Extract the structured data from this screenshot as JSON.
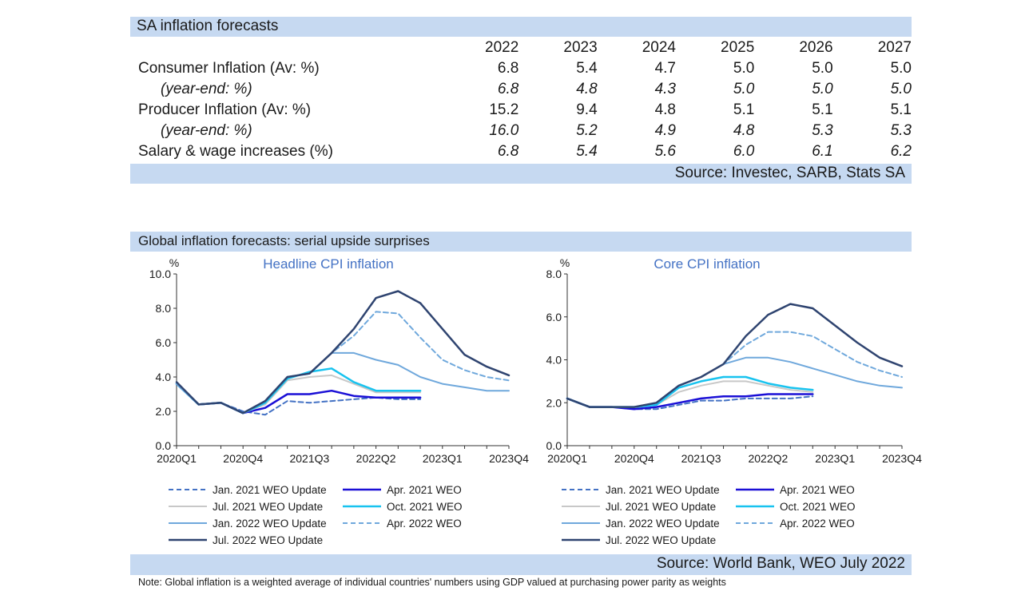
{
  "sa_table": {
    "title": "SA inflation forecasts",
    "years": [
      "2022",
      "2023",
      "2024",
      "2025",
      "2026",
      "2027"
    ],
    "rows": [
      {
        "label": "Consumer Inflation (Av: %)",
        "values": [
          "6.8",
          "5.4",
          "4.7",
          "5.0",
          "5.0",
          "5.0"
        ]
      },
      {
        "label": "(year-end: %)",
        "values": [
          "6.8",
          "4.8",
          "4.3",
          "5.0",
          "5.0",
          "5.0"
        ]
      },
      {
        "label": "Producer Inflation (Av: %)",
        "values": [
          "15.2",
          "9.4",
          "4.8",
          "5.1",
          "5.1",
          "5.1"
        ]
      },
      {
        "label": "(year-end: %)",
        "values": [
          "16.0",
          "5.2",
          "4.9",
          "4.8",
          "5.3",
          "5.3"
        ]
      },
      {
        "label": "Salary & wage increases (%)",
        "values": [
          "6.8",
          "5.4",
          "5.6",
          "6.0",
          "6.1",
          "6.2"
        ]
      }
    ],
    "source": "Source: Investec, SARB, Stats SA"
  },
  "global_section": {
    "title": "Global inflation forecasts: serial upside surprises",
    "source": "Source: World Bank, WEO July 2022",
    "note": "Note: Global inflation is a weighted average of individual countries' numbers using GDP valued at purchasing power parity as weights"
  },
  "chart_data": [
    {
      "type": "line",
      "title": "Headline CPI inflation",
      "ylabel": "%",
      "ylim": [
        0,
        10
      ],
      "yticks": [
        "0.0",
        "2.0",
        "4.0",
        "6.0",
        "8.0",
        "10.0"
      ],
      "xtick_labels": [
        "2020Q1",
        "2020Q4",
        "2021Q3",
        "2022Q2",
        "2023Q1",
        "2023Q4"
      ],
      "x": [
        "2020Q1",
        "2020Q2",
        "2020Q3",
        "2020Q4",
        "2021Q1",
        "2021Q2",
        "2021Q3",
        "2021Q4",
        "2022Q1",
        "2022Q2",
        "2022Q3",
        "2022Q4",
        "2023Q1",
        "2023Q2",
        "2023Q3",
        "2023Q4"
      ],
      "series": [
        {
          "name": "Jan. 2021 WEO Update",
          "values": [
            3.6,
            2.4,
            2.5,
            2.0,
            1.8,
            2.6,
            2.5,
            2.6,
            2.7,
            2.8,
            2.7,
            2.7,
            null,
            null,
            null,
            null
          ]
        },
        {
          "name": "Apr. 2021 WEO",
          "values": [
            3.6,
            2.4,
            2.5,
            1.9,
            2.2,
            3.0,
            3.0,
            3.2,
            2.9,
            2.8,
            2.8,
            2.8,
            null,
            null,
            null,
            null
          ]
        },
        {
          "name": "Jul. 2021 WEO Update",
          "values": [
            3.6,
            2.4,
            2.5,
            1.9,
            2.4,
            3.8,
            4.0,
            4.1,
            3.6,
            3.1,
            3.1,
            3.1,
            null,
            null,
            null,
            null
          ]
        },
        {
          "name": "Oct. 2021 WEO",
          "values": [
            3.6,
            2.4,
            2.5,
            1.9,
            2.5,
            3.9,
            4.3,
            4.5,
            3.7,
            3.2,
            3.2,
            3.2,
            null,
            null,
            null,
            null
          ]
        },
        {
          "name": "Jan. 2022 WEO Update",
          "values": [
            3.6,
            2.4,
            2.5,
            1.9,
            2.6,
            4.0,
            4.2,
            5.4,
            5.4,
            5.0,
            4.7,
            4.0,
            3.6,
            3.4,
            3.2,
            3.2
          ]
        },
        {
          "name": "Apr. 2022 WEO",
          "values": [
            3.6,
            2.4,
            2.5,
            1.9,
            2.6,
            4.0,
            4.2,
            5.4,
            6.4,
            7.8,
            7.7,
            6.3,
            5.0,
            4.4,
            4.0,
            3.8
          ]
        },
        {
          "name": "Jul. 2022 WEO Update",
          "values": [
            3.7,
            2.4,
            2.5,
            1.9,
            2.6,
            4.0,
            4.2,
            5.4,
            6.8,
            8.6,
            9.0,
            8.3,
            6.8,
            5.3,
            4.6,
            4.1
          ]
        }
      ]
    },
    {
      "type": "line",
      "title": "Core CPI inflation",
      "ylabel": "%",
      "ylim": [
        0,
        8
      ],
      "yticks": [
        "0.0",
        "2.0",
        "4.0",
        "6.0",
        "8.0"
      ],
      "xtick_labels": [
        "2020Q1",
        "2020Q4",
        "2021Q3",
        "2022Q2",
        "2023Q1",
        "2023Q4"
      ],
      "x": [
        "2020Q1",
        "2020Q2",
        "2020Q3",
        "2020Q4",
        "2021Q1",
        "2021Q2",
        "2021Q3",
        "2021Q4",
        "2022Q1",
        "2022Q2",
        "2022Q3",
        "2022Q4",
        "2023Q1",
        "2023Q2",
        "2023Q3",
        "2023Q4"
      ],
      "series": [
        {
          "name": "Jan. 2021 WEO Update",
          "values": [
            2.2,
            1.8,
            1.8,
            1.7,
            1.7,
            1.9,
            2.1,
            2.1,
            2.2,
            2.2,
            2.2,
            2.3,
            null,
            null,
            null,
            null
          ]
        },
        {
          "name": "Apr. 2021 WEO",
          "values": [
            2.2,
            1.8,
            1.8,
            1.7,
            1.8,
            2.0,
            2.2,
            2.3,
            2.3,
            2.4,
            2.4,
            2.4,
            null,
            null,
            null,
            null
          ]
        },
        {
          "name": "Jul. 2021 WEO Update",
          "values": [
            2.2,
            1.8,
            1.8,
            1.8,
            1.9,
            2.5,
            2.8,
            3.0,
            3.0,
            2.8,
            2.6,
            2.5,
            null,
            null,
            null,
            null
          ]
        },
        {
          "name": "Oct. 2021 WEO",
          "values": [
            2.2,
            1.8,
            1.8,
            1.8,
            1.9,
            2.7,
            3.0,
            3.2,
            3.2,
            2.9,
            2.7,
            2.6,
            null,
            null,
            null,
            null
          ]
        },
        {
          "name": "Jan. 2022 WEO Update",
          "values": [
            2.2,
            1.8,
            1.8,
            1.8,
            2.0,
            2.8,
            3.2,
            3.8,
            4.1,
            4.1,
            3.9,
            3.6,
            3.3,
            3.0,
            2.8,
            2.7
          ]
        },
        {
          "name": "Apr. 2022 WEO",
          "values": [
            2.2,
            1.8,
            1.8,
            1.8,
            2.0,
            2.8,
            3.2,
            3.8,
            4.7,
            5.3,
            5.3,
            5.1,
            4.5,
            3.9,
            3.5,
            3.2
          ]
        },
        {
          "name": "Jul. 2022 WEO Update",
          "values": [
            2.2,
            1.8,
            1.8,
            1.8,
            2.0,
            2.8,
            3.2,
            3.8,
            5.1,
            6.1,
            6.6,
            6.4,
            5.6,
            4.8,
            4.1,
            3.7
          ]
        }
      ]
    }
  ],
  "legend": [
    {
      "name": "Jan. 2021 WEO Update",
      "color": "#4472c4",
      "dash": true,
      "width": 2
    },
    {
      "name": "Apr. 2021 WEO",
      "color": "#1a0fd6",
      "dash": false,
      "width": 2.5
    },
    {
      "name": "Jul. 2021 WEO Update",
      "color": "#c8c8c8",
      "dash": false,
      "width": 2
    },
    {
      "name": "Oct. 2021 WEO",
      "color": "#18c3ef",
      "dash": false,
      "width": 2.5
    },
    {
      "name": "Jan. 2022 WEO Update",
      "color": "#6fa8dc",
      "dash": false,
      "width": 2
    },
    {
      "name": "Apr. 2022 WEO",
      "color": "#6fa8dc",
      "dash": true,
      "width": 2
    },
    {
      "name": "Jul. 2022 WEO Update",
      "color": "#2f4470",
      "dash": false,
      "width": 2.5
    }
  ],
  "colors": {
    "band": "#c6d9f1",
    "title_blue": "#4472c4"
  }
}
